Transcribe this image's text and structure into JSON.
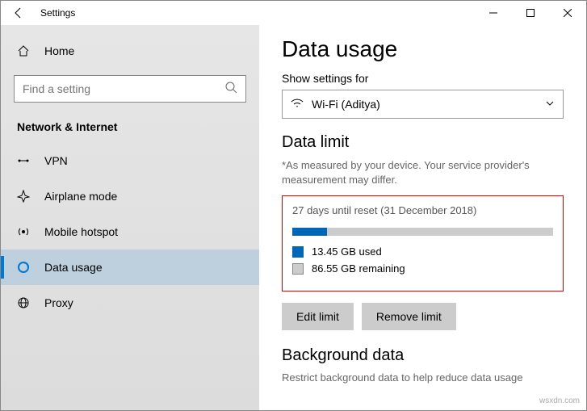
{
  "titlebar": {
    "title": "Settings"
  },
  "sidebar": {
    "home": "Home",
    "search_placeholder": "Find a setting",
    "section": "Network & Internet",
    "items": [
      {
        "label": "VPN"
      },
      {
        "label": "Airplane mode"
      },
      {
        "label": "Mobile hotspot"
      },
      {
        "label": "Data usage"
      },
      {
        "label": "Proxy"
      }
    ]
  },
  "main": {
    "title": "Data usage",
    "show_label": "Show settings for",
    "network": "Wi-Fi (Aditya)",
    "datalimit_heading": "Data limit",
    "note": "*As measured by your device. Your service provider's measurement may differ.",
    "reset_text": "27 days until reset (31 December 2018)",
    "used_gb": 13.45,
    "total_gb": 100,
    "used_label": "13.45 GB used",
    "remain_label": "86.55 GB remaining",
    "bar_fill_color": "#0067b8",
    "bar_bg_color": "#cccccc",
    "edit_btn": "Edit limit",
    "remove_btn": "Remove limit",
    "bg_heading": "Background data",
    "bg_desc": "Restrict background data to help reduce data usage"
  },
  "watermark": "wsxdn.com"
}
